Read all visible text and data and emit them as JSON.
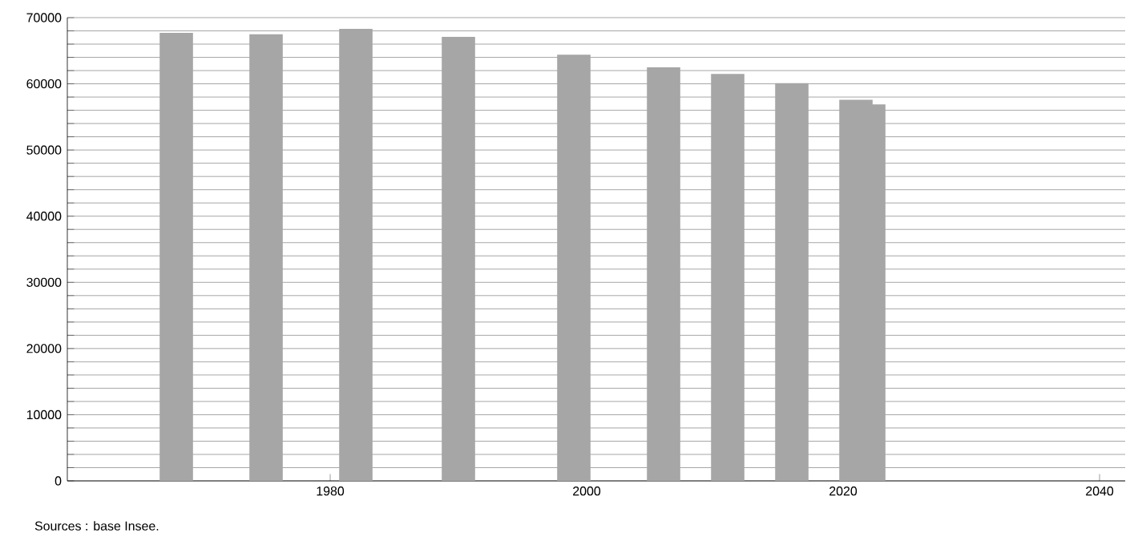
{
  "chart_data": {
    "type": "bar",
    "x": [
      1968,
      1975,
      1982,
      1990,
      1999,
      2006,
      2011,
      2016,
      2021,
      2022
    ],
    "values": [
      67700,
      67500,
      68300,
      67100,
      64400,
      62500,
      61500,
      60100,
      57600,
      56900
    ],
    "color": "#a6a6a6",
    "xlim": [
      1959.5,
      2042
    ],
    "xticks": [
      1980,
      2000,
      2020,
      2040
    ],
    "ylim": [
      0,
      70000
    ],
    "yticks": [
      0,
      {
        "value": 2000,
        "label": null
      },
      {
        "value": 4000,
        "label": null
      },
      {
        "value": 6000,
        "label": null
      },
      {
        "value": 8000,
        "label": null
      },
      10000,
      {
        "value": 12000,
        "label": null
      },
      {
        "value": 14000,
        "label": null
      },
      {
        "value": 16000,
        "label": null
      },
      {
        "value": 18000,
        "label": null
      },
      20000,
      {
        "value": 22000,
        "label": null
      },
      {
        "value": 24000,
        "label": null
      },
      {
        "value": 26000,
        "label": null
      },
      {
        "value": 28000,
        "label": null
      },
      30000,
      {
        "value": 32000,
        "label": null
      },
      {
        "value": 34000,
        "label": null
      },
      {
        "value": 36000,
        "label": null
      },
      {
        "value": 38000,
        "label": null
      },
      40000,
      {
        "value": 42000,
        "label": null
      },
      {
        "value": 44000,
        "label": null
      },
      {
        "value": 46000,
        "label": null
      },
      {
        "value": 48000,
        "label": null
      },
      50000,
      {
        "value": 52000,
        "label": null
      },
      {
        "value": 54000,
        "label": null
      },
      {
        "value": 56000,
        "label": null
      },
      {
        "value": 58000,
        "label": null
      },
      60000,
      {
        "value": 62000,
        "label": null
      },
      {
        "value": 64000,
        "label": null
      },
      {
        "value": 66000,
        "label": null
      },
      {
        "value": 68000,
        "label": null
      },
      70000
    ],
    "grid": "y",
    "annotations": [
      "Sources : base Insee."
    ]
  }
}
